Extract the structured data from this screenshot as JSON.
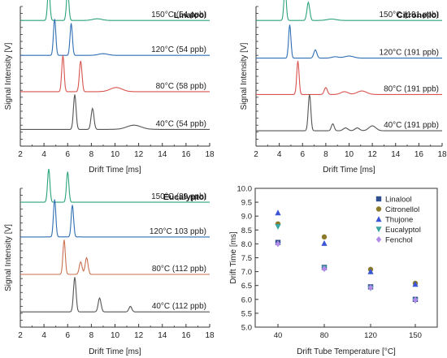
{
  "chart_data": [
    {
      "type": "line",
      "title": "Linalool",
      "xlabel": "Drift Time [ms]",
      "ylabel": "Signal Intensity [V]",
      "xlim": [
        2,
        18
      ],
      "xticks": [
        "2",
        "4",
        "6",
        "8",
        "10",
        "12",
        "14",
        "16",
        "18"
      ],
      "series": [
        {
          "label": "150°C (54 ppb)",
          "color": "#2ca37a",
          "baseline": 0.9,
          "peaks": [
            [
              4.4,
              0.24,
              0.1
            ],
            [
              6.0,
              0.22,
              0.1
            ],
            [
              8.5,
              0.012,
              0.4
            ]
          ]
        },
        {
          "label": "120°C (54 ppb)",
          "color": "#2f6fb5",
          "baseline": 0.65,
          "peaks": [
            [
              4.9,
              0.26,
              0.1
            ],
            [
              6.3,
              0.23,
              0.1
            ],
            [
              9.0,
              0.012,
              0.4
            ]
          ]
        },
        {
          "label": "80°C (58 ppb)",
          "color": "#d9534f",
          "baseline": 0.39,
          "peaks": [
            [
              5.6,
              0.26,
              0.1
            ],
            [
              7.1,
              0.22,
              0.11
            ],
            [
              10.1,
              0.03,
              0.5
            ]
          ]
        },
        {
          "label": "40°C (54 ppb)",
          "color": "#555555",
          "baseline": 0.12,
          "peaks": [
            [
              6.6,
              0.25,
              0.11
            ],
            [
              8.1,
              0.15,
              0.12
            ],
            [
              11.6,
              0.03,
              0.6
            ]
          ]
        }
      ]
    },
    {
      "type": "line",
      "title": "Citronellol",
      "xlabel": "Drift Time [ms]",
      "ylabel": "Signal Intensity [V]",
      "xlim": [
        2,
        18
      ],
      "xticks": [
        "2",
        "4",
        "6",
        "8",
        "10",
        "12",
        "14",
        "16",
        "18"
      ],
      "series": [
        {
          "label": "150°C (191 ppb)",
          "color": "#2ca37a",
          "baseline": 0.9,
          "peaks": [
            [
              4.5,
              0.24,
              0.1
            ],
            [
              6.5,
              0.13,
              0.12
            ],
            [
              8.5,
              0.01,
              0.4
            ]
          ]
        },
        {
          "label": "120°C (191 ppb)",
          "color": "#2f6fb5",
          "baseline": 0.63,
          "peaks": [
            [
              4.9,
              0.24,
              0.1
            ],
            [
              7.1,
              0.06,
              0.13
            ],
            [
              8.8,
              0.01,
              0.3
            ],
            [
              10.0,
              0.015,
              0.4
            ]
          ]
        },
        {
          "label": "80°C (191 ppb)",
          "color": "#d9534f",
          "baseline": 0.37,
          "peaks": [
            [
              5.6,
              0.24,
              0.1
            ],
            [
              8.0,
              0.05,
              0.13
            ],
            [
              9.6,
              0.02,
              0.3
            ],
            [
              11.1,
              0.025,
              0.4
            ]
          ]
        },
        {
          "label": "40°C (191 ppb)",
          "color": "#555555",
          "baseline": 0.11,
          "peaks": [
            [
              6.6,
              0.26,
              0.11
            ],
            [
              8.6,
              0.05,
              0.12
            ],
            [
              9.7,
              0.02,
              0.2
            ],
            [
              10.7,
              0.02,
              0.2
            ],
            [
              12.0,
              0.035,
              0.3
            ]
          ]
        }
      ]
    },
    {
      "type": "line",
      "title": "Eucalyptol",
      "xlabel": "Drift Time [ms]",
      "ylabel": "Signal Intensity [V]",
      "xlim": [
        2,
        18
      ],
      "xticks": [
        "2",
        "4",
        "6",
        "8",
        "10",
        "12",
        "14",
        "16",
        "18"
      ],
      "series": [
        {
          "label": "150°C (89 ppb)",
          "color": "#2ca37a",
          "baseline": 0.9,
          "peaks": [
            [
              4.4,
              0.24,
              0.1
            ],
            [
              6.0,
              0.22,
              0.1
            ]
          ]
        },
        {
          "label": "120°C 103 ppb)",
          "color": "#2f6fb5",
          "baseline": 0.65,
          "peaks": [
            [
              4.9,
              0.27,
              0.1
            ],
            [
              6.4,
              0.23,
              0.1
            ]
          ]
        },
        {
          "label": "80°C (112 ppb)",
          "color": "#c9704f",
          "baseline": 0.38,
          "peaks": [
            [
              5.7,
              0.25,
              0.1
            ],
            [
              7.1,
              0.09,
              0.12
            ],
            [
              7.6,
              0.12,
              0.12
            ]
          ]
        },
        {
          "label": "40°C (112 ppb)",
          "color": "#555555",
          "baseline": 0.11,
          "peaks": [
            [
              6.6,
              0.25,
              0.11
            ],
            [
              8.7,
              0.1,
              0.12
            ],
            [
              11.3,
              0.04,
              0.12
            ]
          ]
        }
      ]
    },
    {
      "type": "scatter",
      "xlabel": "Drift Tube Temperature [°C]",
      "ylabel": "Drift Time [ms]",
      "ylim": [
        5.0,
        10.0
      ],
      "xticks": [
        40,
        80,
        120,
        150
      ],
      "yticks": [
        "5.0",
        "5.5",
        "6.0",
        "6.5",
        "7.0",
        "7.5",
        "8.0",
        "8.5",
        "9.0",
        "9.5",
        "10.0"
      ],
      "legend_position": "top-right",
      "series": [
        {
          "name": "Linalool",
          "color": "#2f4f8f",
          "marker": "square",
          "x": [
            40,
            80,
            120,
            150
          ],
          "y": [
            8.05,
            7.15,
            6.45,
            6.0
          ]
        },
        {
          "name": "Citronellol",
          "color": "#8a7a2a",
          "marker": "circle",
          "x": [
            40,
            80,
            120,
            150
          ],
          "y": [
            8.72,
            8.25,
            7.08,
            6.58
          ]
        },
        {
          "name": "Thujone",
          "color": "#3a56d6",
          "marker": "triangle-up",
          "x": [
            40,
            80,
            120,
            150
          ],
          "y": [
            9.12,
            8.02,
            7.0,
            6.55
          ]
        },
        {
          "name": "Eucalyptol",
          "color": "#3aa6a0",
          "marker": "triangle-down",
          "x": [
            40,
            80,
            120,
            150
          ],
          "y": [
            8.62,
            7.12,
            6.4,
            5.95
          ]
        },
        {
          "name": "Fenchol",
          "color": "#b28be8",
          "marker": "diamond",
          "x": [
            40,
            80,
            120,
            150
          ],
          "y": [
            8.0,
            7.1,
            6.42,
            5.98
          ]
        }
      ]
    }
  ]
}
